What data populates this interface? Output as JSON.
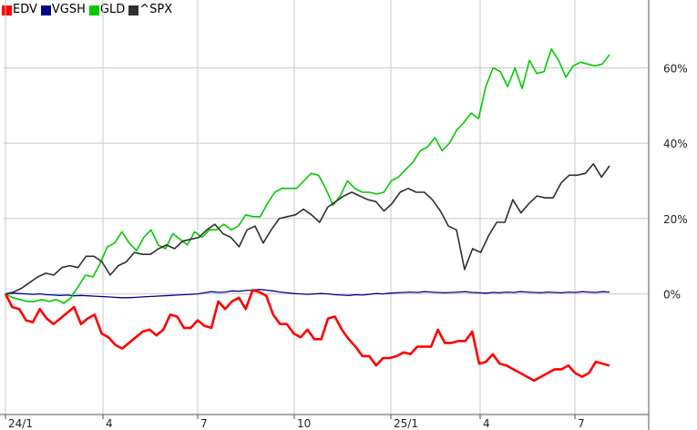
{
  "chart_data": {
    "type": "line",
    "title": "",
    "xlabel": "",
    "ylabel": "",
    "x_ticks": [
      "24/1",
      "4",
      "7",
      "10",
      "25/1",
      "4",
      "7"
    ],
    "y_ticks": [
      "0%",
      "20%",
      "40%",
      "60%"
    ],
    "y_tick_values": [
      0,
      20,
      40,
      60
    ],
    "ylim": [
      -32,
      78
    ],
    "grid": true,
    "legend_position": "top-left",
    "series": [
      {
        "name": "EDV",
        "color": "#ff0000",
        "values": [
          0,
          -3.5,
          -4,
          -7,
          -7.5,
          -4,
          -6.5,
          -8,
          -6.5,
          -5,
          -3.5,
          -8,
          -6.5,
          -5.5,
          -10.5,
          -11.5,
          -13.5,
          -14.5,
          -13,
          -11.5,
          -10,
          -9.5,
          -11,
          -9.5,
          -5.5,
          -6,
          -9,
          -9,
          -7,
          -8.5,
          -9,
          -2,
          -4,
          -2,
          -1,
          -4,
          1,
          0.5,
          -0.5,
          -5.5,
          -8,
          -8,
          -10.5,
          -11.5,
          -9.5,
          -12,
          -12,
          -6.5,
          -6,
          -9.5,
          -12,
          -14,
          -16.5,
          -16.5,
          -19,
          -17,
          -17,
          -16.5,
          -15.5,
          -16,
          -14,
          -14,
          -14,
          -9.5,
          -13,
          -13,
          -12.5,
          -12.5,
          -10,
          -18.5,
          -18,
          -16,
          -18.5,
          -19,
          -20,
          -21,
          -22,
          -23,
          -22,
          -21,
          -20,
          -20,
          -19,
          -21,
          -22,
          -21,
          -18,
          -18.5,
          -19
        ]
      },
      {
        "name": "VGSH",
        "color": "#00008b",
        "values": [
          0,
          0.2,
          0.1,
          0,
          -0.1,
          0,
          -0.2,
          -0.3,
          -0.4,
          -0.3,
          -0.5,
          -0.4,
          -0.5,
          -0.6,
          -0.7,
          -0.8,
          -0.9,
          -1,
          -1,
          -0.9,
          -0.8,
          -0.7,
          -0.6,
          -0.5,
          -0.4,
          -0.3,
          -0.2,
          -0.1,
          0,
          0.3,
          0.6,
          0.4,
          0.5,
          0.8,
          0.7,
          0.9,
          1,
          1.2,
          1,
          0.8,
          0.5,
          0.3,
          0.1,
          0,
          -0.1,
          0,
          0.1,
          0,
          -0.2,
          -0.3,
          -0.4,
          -0.2,
          -0.3,
          -0.1,
          0.1,
          0,
          0.2,
          0.3,
          0.4,
          0.5,
          0.4,
          0.6,
          0.5,
          0.4,
          0.3,
          0.4,
          0.5,
          0.6,
          0.4,
          0.3,
          0.2,
          0.4,
          0.3,
          0.5,
          0.4,
          0.6,
          0.5,
          0.4,
          0.3,
          0.5,
          0.4,
          0.3,
          0.5,
          0.4,
          0.6,
          0.5,
          0.4,
          0.6,
          0.5
        ]
      },
      {
        "name": "GLD",
        "color": "#00cc00",
        "values": [
          0,
          -1,
          -1.5,
          -2,
          -2,
          -1.5,
          -2,
          -1.5,
          -2.5,
          -1,
          2,
          5,
          4.5,
          8,
          12.5,
          13.5,
          16.5,
          13.5,
          11.5,
          15,
          17,
          13,
          12,
          16,
          14.5,
          13,
          16.5,
          15,
          17,
          17,
          18.5,
          17,
          18,
          21,
          20.5,
          20.5,
          24,
          27,
          28,
          28,
          28,
          30,
          32,
          31.5,
          28,
          23.5,
          26,
          30,
          28,
          27,
          27,
          26.5,
          27,
          30,
          31,
          33,
          35,
          38,
          39,
          41.5,
          38,
          40,
          43.5,
          45.5,
          48,
          46.5,
          55,
          60,
          59,
          55,
          60,
          54.5,
          62,
          58.5,
          59,
          65,
          62,
          57.5,
          60.5,
          61.5,
          61,
          60.5,
          61,
          63.5
        ]
      },
      {
        "name": "^SPX",
        "color": "#303030",
        "values": [
          0,
          0.5,
          1.5,
          3,
          4.5,
          5.5,
          5,
          7,
          7.5,
          7,
          10,
          10,
          8.5,
          5,
          7.5,
          8.5,
          11,
          10.5,
          10.5,
          12,
          13,
          12,
          14,
          14.5,
          15,
          17,
          18.5,
          16,
          15,
          12.5,
          17,
          18,
          13.5,
          17,
          20,
          20.5,
          21,
          22.5,
          21,
          19,
          23,
          24.5,
          26,
          27,
          26,
          25,
          24.5,
          22,
          24,
          27,
          28,
          27,
          27,
          25,
          22,
          18,
          17,
          6.5,
          12,
          11,
          15.5,
          19,
          19,
          25,
          21.5,
          24,
          26,
          25.5,
          25.5,
          29.5,
          31.5,
          31.5,
          32,
          34.5,
          31,
          34
        ]
      }
    ]
  }
}
